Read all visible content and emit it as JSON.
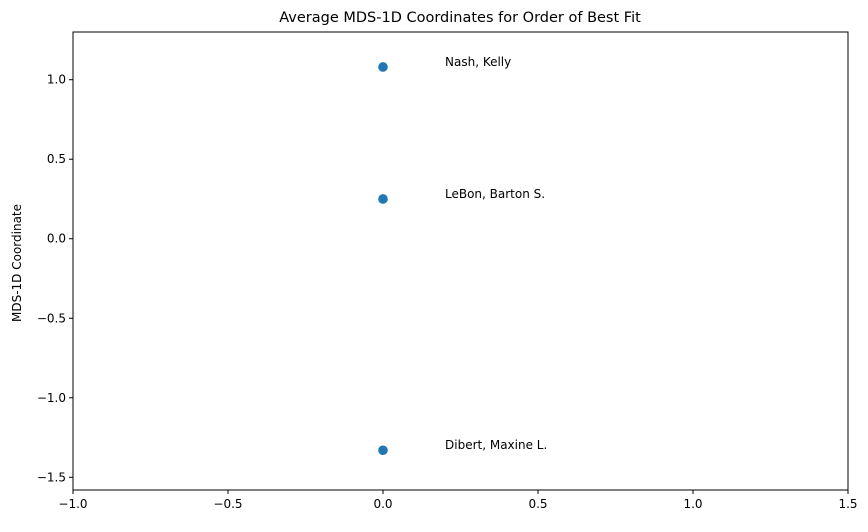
{
  "chart_data": {
    "type": "scatter",
    "title": "Average MDS-1D Coordinates for Order of Best Fit",
    "xlabel": "",
    "ylabel": "MDS-1D Coordinate",
    "xlim": [
      -1.0,
      1.5
    ],
    "ylim": [
      -1.58,
      1.3
    ],
    "grid": false,
    "marker_color": "#1f77b4",
    "x_ticks": [
      {
        "value": -1.0,
        "label": "−1.0"
      },
      {
        "value": -0.5,
        "label": "−0.5"
      },
      {
        "value": 0.0,
        "label": "0.0"
      },
      {
        "value": 0.5,
        "label": "0.5"
      },
      {
        "value": 1.0,
        "label": "1.0"
      },
      {
        "value": 1.5,
        "label": "1.5"
      }
    ],
    "y_ticks": [
      {
        "value": -1.5,
        "label": "−1.5"
      },
      {
        "value": -1.0,
        "label": "−1.0"
      },
      {
        "value": -0.5,
        "label": "−0.5"
      },
      {
        "value": 0.0,
        "label": "0.0"
      },
      {
        "value": 0.5,
        "label": "0.5"
      },
      {
        "value": 1.0,
        "label": "1.0"
      }
    ],
    "points": [
      {
        "x": 0.0,
        "y": 1.08,
        "label": "Nash, Kelly",
        "label_x": 0.2
      },
      {
        "x": 0.0,
        "y": 0.25,
        "label": "LeBon, Barton S.",
        "label_x": 0.2
      },
      {
        "x": 0.0,
        "y": -1.33,
        "label": "Dibert, Maxine L.",
        "label_x": 0.2
      }
    ]
  }
}
